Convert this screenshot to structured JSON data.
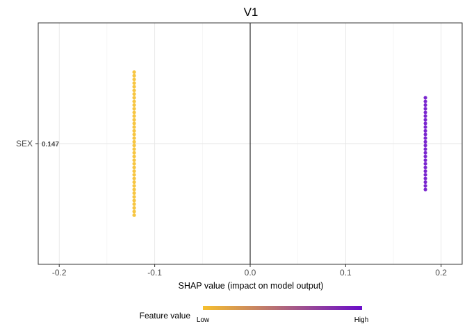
{
  "chart_data": {
    "type": "scatter",
    "title": "V1",
    "xlabel": "SHAP value (impact on model output)",
    "ylabel": "",
    "xlim": [
      -0.222,
      0.222
    ],
    "x_ticks": [
      -0.2,
      -0.1,
      0.0,
      0.1,
      0.2
    ],
    "x_tick_labels": [
      "-0.2",
      "-0.1",
      "0.0",
      "0.1",
      "0.2"
    ],
    "categories": [
      "SEX"
    ],
    "annotations": [
      {
        "category": "SEX",
        "text": "0.147"
      }
    ],
    "grid": true,
    "zero_line": true,
    "legend": {
      "title": "Feature value",
      "low_label": "Low",
      "high_label": "High",
      "low_color": "#F6C02E",
      "high_color": "#6A0DCA",
      "placement": "bottom"
    },
    "series": [
      {
        "category": "SEX",
        "feature_level": "low",
        "color": "#F6C02E",
        "x": -0.1215,
        "jitter": [
          -0.78,
          -0.74,
          -0.7,
          -0.66,
          -0.62,
          -0.58,
          -0.54,
          -0.5,
          -0.46,
          -0.42,
          -0.38,
          -0.34,
          -0.3,
          -0.26,
          -0.22,
          -0.18,
          -0.14,
          -0.1,
          -0.06,
          -0.02,
          0.02,
          0.06,
          0.1,
          0.14,
          0.18,
          0.22,
          0.26,
          0.3,
          0.34,
          0.38,
          0.42,
          0.46,
          0.5,
          0.54,
          0.58,
          0.62,
          0.66,
          0.7,
          0.74,
          0.78
        ]
      },
      {
        "category": "SEX",
        "feature_level": "high",
        "color": "#6A0DCA",
        "x": 0.1835,
        "jitter": [
          -0.5,
          -0.46,
          -0.42,
          -0.38,
          -0.34,
          -0.3,
          -0.26,
          -0.22,
          -0.18,
          -0.14,
          -0.1,
          -0.06,
          -0.02,
          0.02,
          0.06,
          0.1,
          0.14,
          0.18,
          0.22,
          0.26,
          0.3,
          0.34,
          0.38,
          0.42,
          0.46,
          0.5
        ]
      }
    ]
  }
}
